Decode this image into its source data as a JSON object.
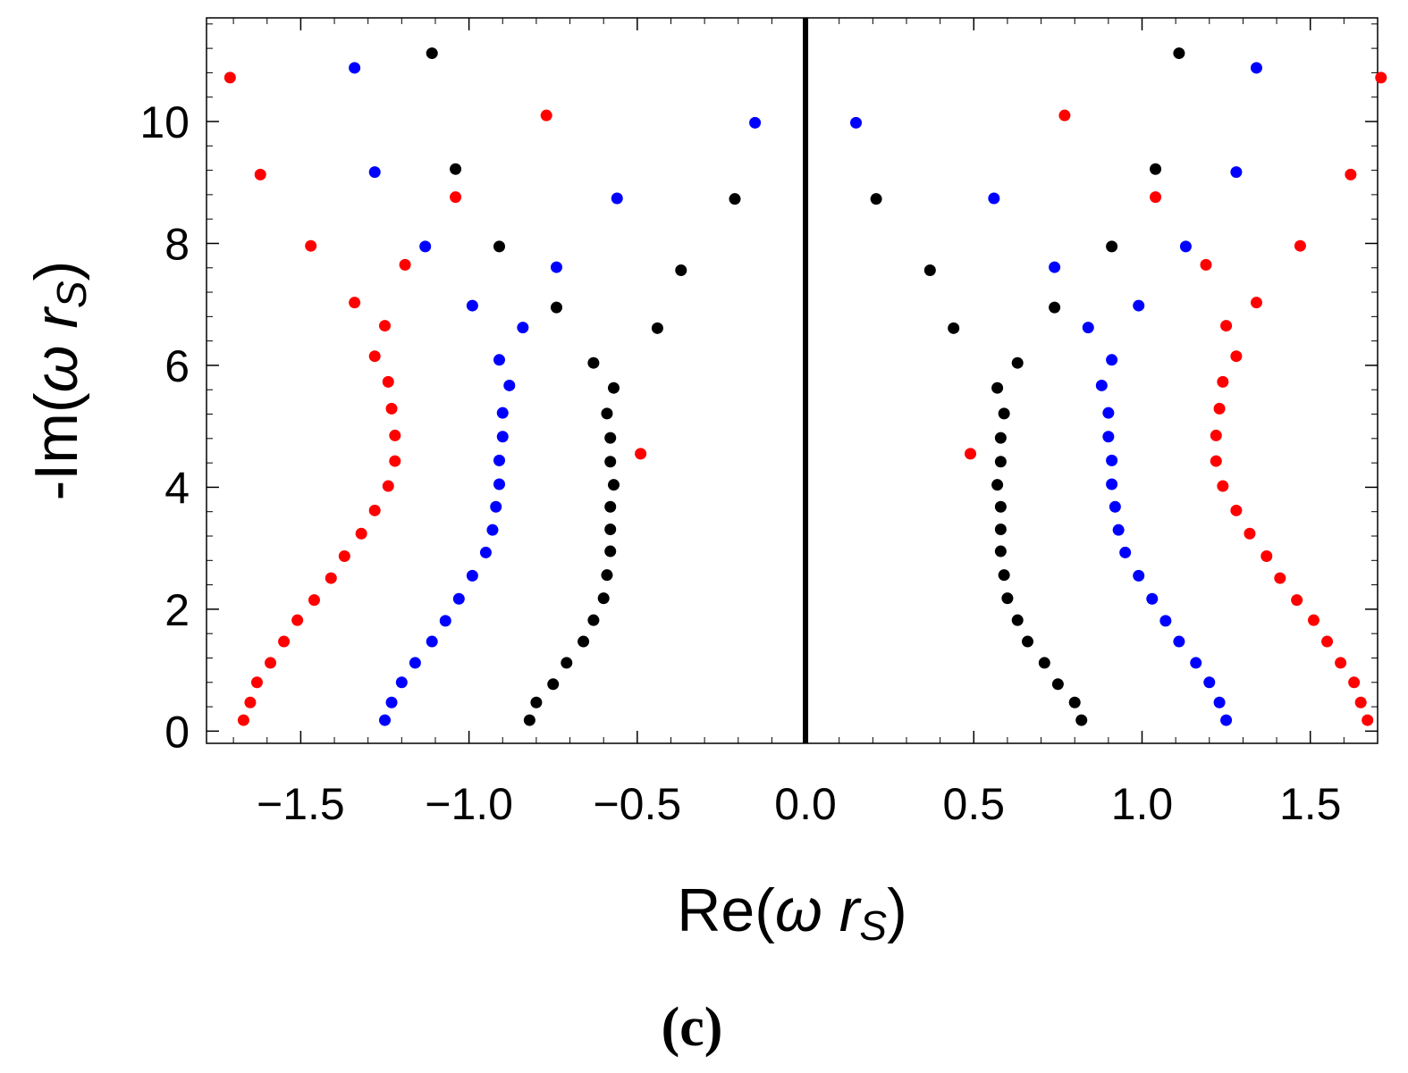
{
  "chart_data": {
    "type": "scatter",
    "title": "",
    "xlabel": "Re(ω r_S)",
    "ylabel": "-Im(ω r_S)",
    "xlabel_parts": {
      "prefix": "Re(",
      "omega": "ω",
      "r": "r",
      "sub": "S",
      "suffix": ")"
    },
    "ylabel_parts": {
      "prefix": "-Im(",
      "omega": "ω",
      "r": "r",
      "sub": "S",
      "suffix": ")"
    },
    "caption": "(c)",
    "xlim": [
      -1.78,
      1.7
    ],
    "ylim": [
      -0.2,
      11.7
    ],
    "x_ticks": [
      -1.5,
      -1.0,
      -0.5,
      0.0,
      0.5,
      1.0,
      1.5
    ],
    "x_tick_labels": [
      "−1.5",
      "−1.0",
      "−0.5",
      "0.0",
      "0.5",
      "1.0",
      "1.5"
    ],
    "y_ticks": [
      0,
      2,
      4,
      6,
      8,
      10
    ],
    "y_tick_labels": [
      "0",
      "2",
      "4",
      "6",
      "8",
      "10"
    ],
    "vertical_line_x": 0.0,
    "series": [
      {
        "name": "black",
        "color": "#000000",
        "points": [
          [
            -0.82,
            0.18
          ],
          [
            -0.8,
            0.47
          ],
          [
            -0.75,
            0.77
          ],
          [
            -0.71,
            1.12
          ],
          [
            -0.66,
            1.47
          ],
          [
            -0.63,
            1.82
          ],
          [
            -0.6,
            2.18
          ],
          [
            -0.59,
            2.56
          ],
          [
            -0.58,
            2.95
          ],
          [
            -0.58,
            3.31
          ],
          [
            -0.58,
            3.68
          ],
          [
            -0.57,
            4.04
          ],
          [
            -0.58,
            4.42
          ],
          [
            -0.58,
            4.81
          ],
          [
            -0.59,
            5.21
          ],
          [
            -0.57,
            5.63
          ],
          [
            -0.63,
            6.04
          ],
          [
            -0.44,
            6.61
          ],
          [
            -0.74,
            6.95
          ],
          [
            -0.37,
            7.56
          ],
          [
            -0.91,
            7.95
          ],
          [
            -0.21,
            8.73
          ],
          [
            -1.04,
            9.22
          ],
          [
            -1.11,
            11.12
          ],
          [
            0.82,
            0.18
          ],
          [
            0.8,
            0.47
          ],
          [
            0.75,
            0.77
          ],
          [
            0.71,
            1.12
          ],
          [
            0.66,
            1.47
          ],
          [
            0.63,
            1.82
          ],
          [
            0.6,
            2.18
          ],
          [
            0.59,
            2.56
          ],
          [
            0.58,
            2.95
          ],
          [
            0.58,
            3.31
          ],
          [
            0.58,
            3.68
          ],
          [
            0.57,
            4.04
          ],
          [
            0.58,
            4.42
          ],
          [
            0.58,
            4.81
          ],
          [
            0.59,
            5.21
          ],
          [
            0.57,
            5.63
          ],
          [
            0.63,
            6.04
          ],
          [
            0.44,
            6.61
          ],
          [
            0.74,
            6.95
          ],
          [
            0.37,
            7.56
          ],
          [
            0.91,
            7.95
          ],
          [
            0.21,
            8.73
          ],
          [
            1.04,
            9.22
          ],
          [
            1.11,
            11.12
          ]
        ]
      },
      {
        "name": "blue",
        "color": "#0000ff",
        "points": [
          [
            -1.25,
            0.18
          ],
          [
            -1.23,
            0.47
          ],
          [
            -1.2,
            0.8
          ],
          [
            -1.16,
            1.12
          ],
          [
            -1.11,
            1.47
          ],
          [
            -1.07,
            1.81
          ],
          [
            -1.03,
            2.17
          ],
          [
            -0.99,
            2.55
          ],
          [
            -0.95,
            2.93
          ],
          [
            -0.93,
            3.3
          ],
          [
            -0.92,
            3.68
          ],
          [
            -0.91,
            4.05
          ],
          [
            -0.91,
            4.44
          ],
          [
            -0.9,
            4.83
          ],
          [
            -0.9,
            5.22
          ],
          [
            -0.88,
            5.67
          ],
          [
            -0.91,
            6.09
          ],
          [
            -0.84,
            6.62
          ],
          [
            -0.99,
            6.98
          ],
          [
            -0.74,
            7.61
          ],
          [
            -1.13,
            7.95
          ],
          [
            -0.56,
            8.74
          ],
          [
            -1.28,
            9.17
          ],
          [
            -0.15,
            9.98
          ],
          [
            -1.34,
            10.88
          ],
          [
            1.25,
            0.18
          ],
          [
            1.23,
            0.47
          ],
          [
            1.2,
            0.8
          ],
          [
            1.16,
            1.12
          ],
          [
            1.11,
            1.47
          ],
          [
            1.07,
            1.81
          ],
          [
            1.03,
            2.17
          ],
          [
            0.99,
            2.55
          ],
          [
            0.95,
            2.93
          ],
          [
            0.93,
            3.3
          ],
          [
            0.92,
            3.68
          ],
          [
            0.91,
            4.05
          ],
          [
            0.91,
            4.44
          ],
          [
            0.9,
            4.83
          ],
          [
            0.9,
            5.22
          ],
          [
            0.88,
            5.67
          ],
          [
            0.91,
            6.09
          ],
          [
            0.84,
            6.62
          ],
          [
            0.99,
            6.98
          ],
          [
            0.74,
            7.61
          ],
          [
            1.13,
            7.95
          ],
          [
            0.56,
            8.74
          ],
          [
            1.28,
            9.17
          ],
          [
            0.15,
            9.98
          ],
          [
            1.34,
            10.88
          ]
        ]
      },
      {
        "name": "red",
        "color": "#ff0000",
        "points": [
          [
            -1.67,
            0.18
          ],
          [
            -1.65,
            0.47
          ],
          [
            -1.63,
            0.8
          ],
          [
            -1.59,
            1.12
          ],
          [
            -1.55,
            1.47
          ],
          [
            -1.51,
            1.82
          ],
          [
            -1.46,
            2.15
          ],
          [
            -1.41,
            2.51
          ],
          [
            -1.37,
            2.87
          ],
          [
            -1.32,
            3.24
          ],
          [
            -1.28,
            3.62
          ],
          [
            -1.24,
            4.02
          ],
          [
            -1.22,
            4.43
          ],
          [
            -1.22,
            4.85
          ],
          [
            -1.23,
            5.29
          ],
          [
            -1.24,
            5.73
          ],
          [
            -1.28,
            6.15
          ],
          [
            -1.25,
            6.65
          ],
          [
            -1.34,
            7.03
          ],
          [
            -1.19,
            7.65
          ],
          [
            -1.47,
            7.96
          ],
          [
            -1.04,
            8.76
          ],
          [
            -1.62,
            9.13
          ],
          [
            -0.77,
            10.1
          ],
          [
            -1.71,
            10.72
          ],
          [
            -0.49,
            4.55
          ],
          [
            1.67,
            0.18
          ],
          [
            1.65,
            0.47
          ],
          [
            1.63,
            0.8
          ],
          [
            1.59,
            1.12
          ],
          [
            1.55,
            1.47
          ],
          [
            1.51,
            1.82
          ],
          [
            1.46,
            2.15
          ],
          [
            1.41,
            2.51
          ],
          [
            1.37,
            2.87
          ],
          [
            1.32,
            3.24
          ],
          [
            1.28,
            3.62
          ],
          [
            1.24,
            4.02
          ],
          [
            1.22,
            4.43
          ],
          [
            1.22,
            4.85
          ],
          [
            1.23,
            5.29
          ],
          [
            1.24,
            5.73
          ],
          [
            1.28,
            6.15
          ],
          [
            1.25,
            6.65
          ],
          [
            1.34,
            7.03
          ],
          [
            1.19,
            7.65
          ],
          [
            1.47,
            7.96
          ],
          [
            1.04,
            8.76
          ],
          [
            1.62,
            9.13
          ],
          [
            0.77,
            10.1
          ],
          [
            1.71,
            10.72
          ],
          [
            0.49,
            4.55
          ]
        ]
      }
    ]
  }
}
